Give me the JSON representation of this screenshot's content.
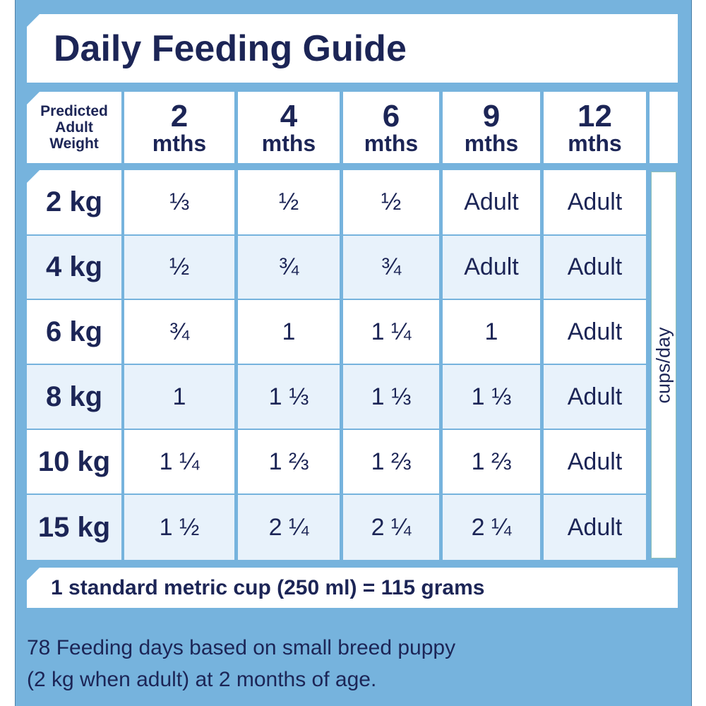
{
  "title": "Daily Feeding Guide",
  "header": {
    "label": [
      "Predicted",
      "Adult",
      "Weight"
    ],
    "columns": [
      {
        "number": "2",
        "unit": "mths"
      },
      {
        "number": "4",
        "unit": "mths"
      },
      {
        "number": "6",
        "unit": "mths"
      },
      {
        "number": "9",
        "unit": "mths"
      },
      {
        "number": "12",
        "unit": "mths"
      }
    ]
  },
  "rows": [
    {
      "weight": "2 kg",
      "values": [
        "⅓",
        "½",
        "½",
        "Adult",
        "Adult"
      ]
    },
    {
      "weight": "4 kg",
      "values": [
        "½",
        "¾",
        "¾",
        "Adult",
        "Adult"
      ]
    },
    {
      "weight": "6 kg",
      "values": [
        "¾",
        "1",
        "1 ¼",
        "1",
        "Adult"
      ]
    },
    {
      "weight": "8 kg",
      "values": [
        "1",
        "1 ⅓",
        "1 ⅓",
        "1 ⅓",
        "Adult"
      ]
    },
    {
      "weight": "10 kg",
      "values": [
        "1 ¼",
        "1 ⅔",
        "1 ⅔",
        "1 ⅔",
        "Adult"
      ]
    },
    {
      "weight": "15 kg",
      "values": [
        "1 ½",
        "2 ¼",
        "2 ¼",
        "2 ¼",
        "Adult"
      ]
    }
  ],
  "unit_label": "cups/day",
  "footer": "1 standard metric cup (250 ml) = 115 grams",
  "note": [
    "78 Feeding days based on small breed puppy",
    "(2 kg when adult) at 2 months of age."
  ],
  "colors": {
    "frame": "#76b3dd",
    "text": "#1c2556",
    "alt_row": "#e8f2fb"
  }
}
